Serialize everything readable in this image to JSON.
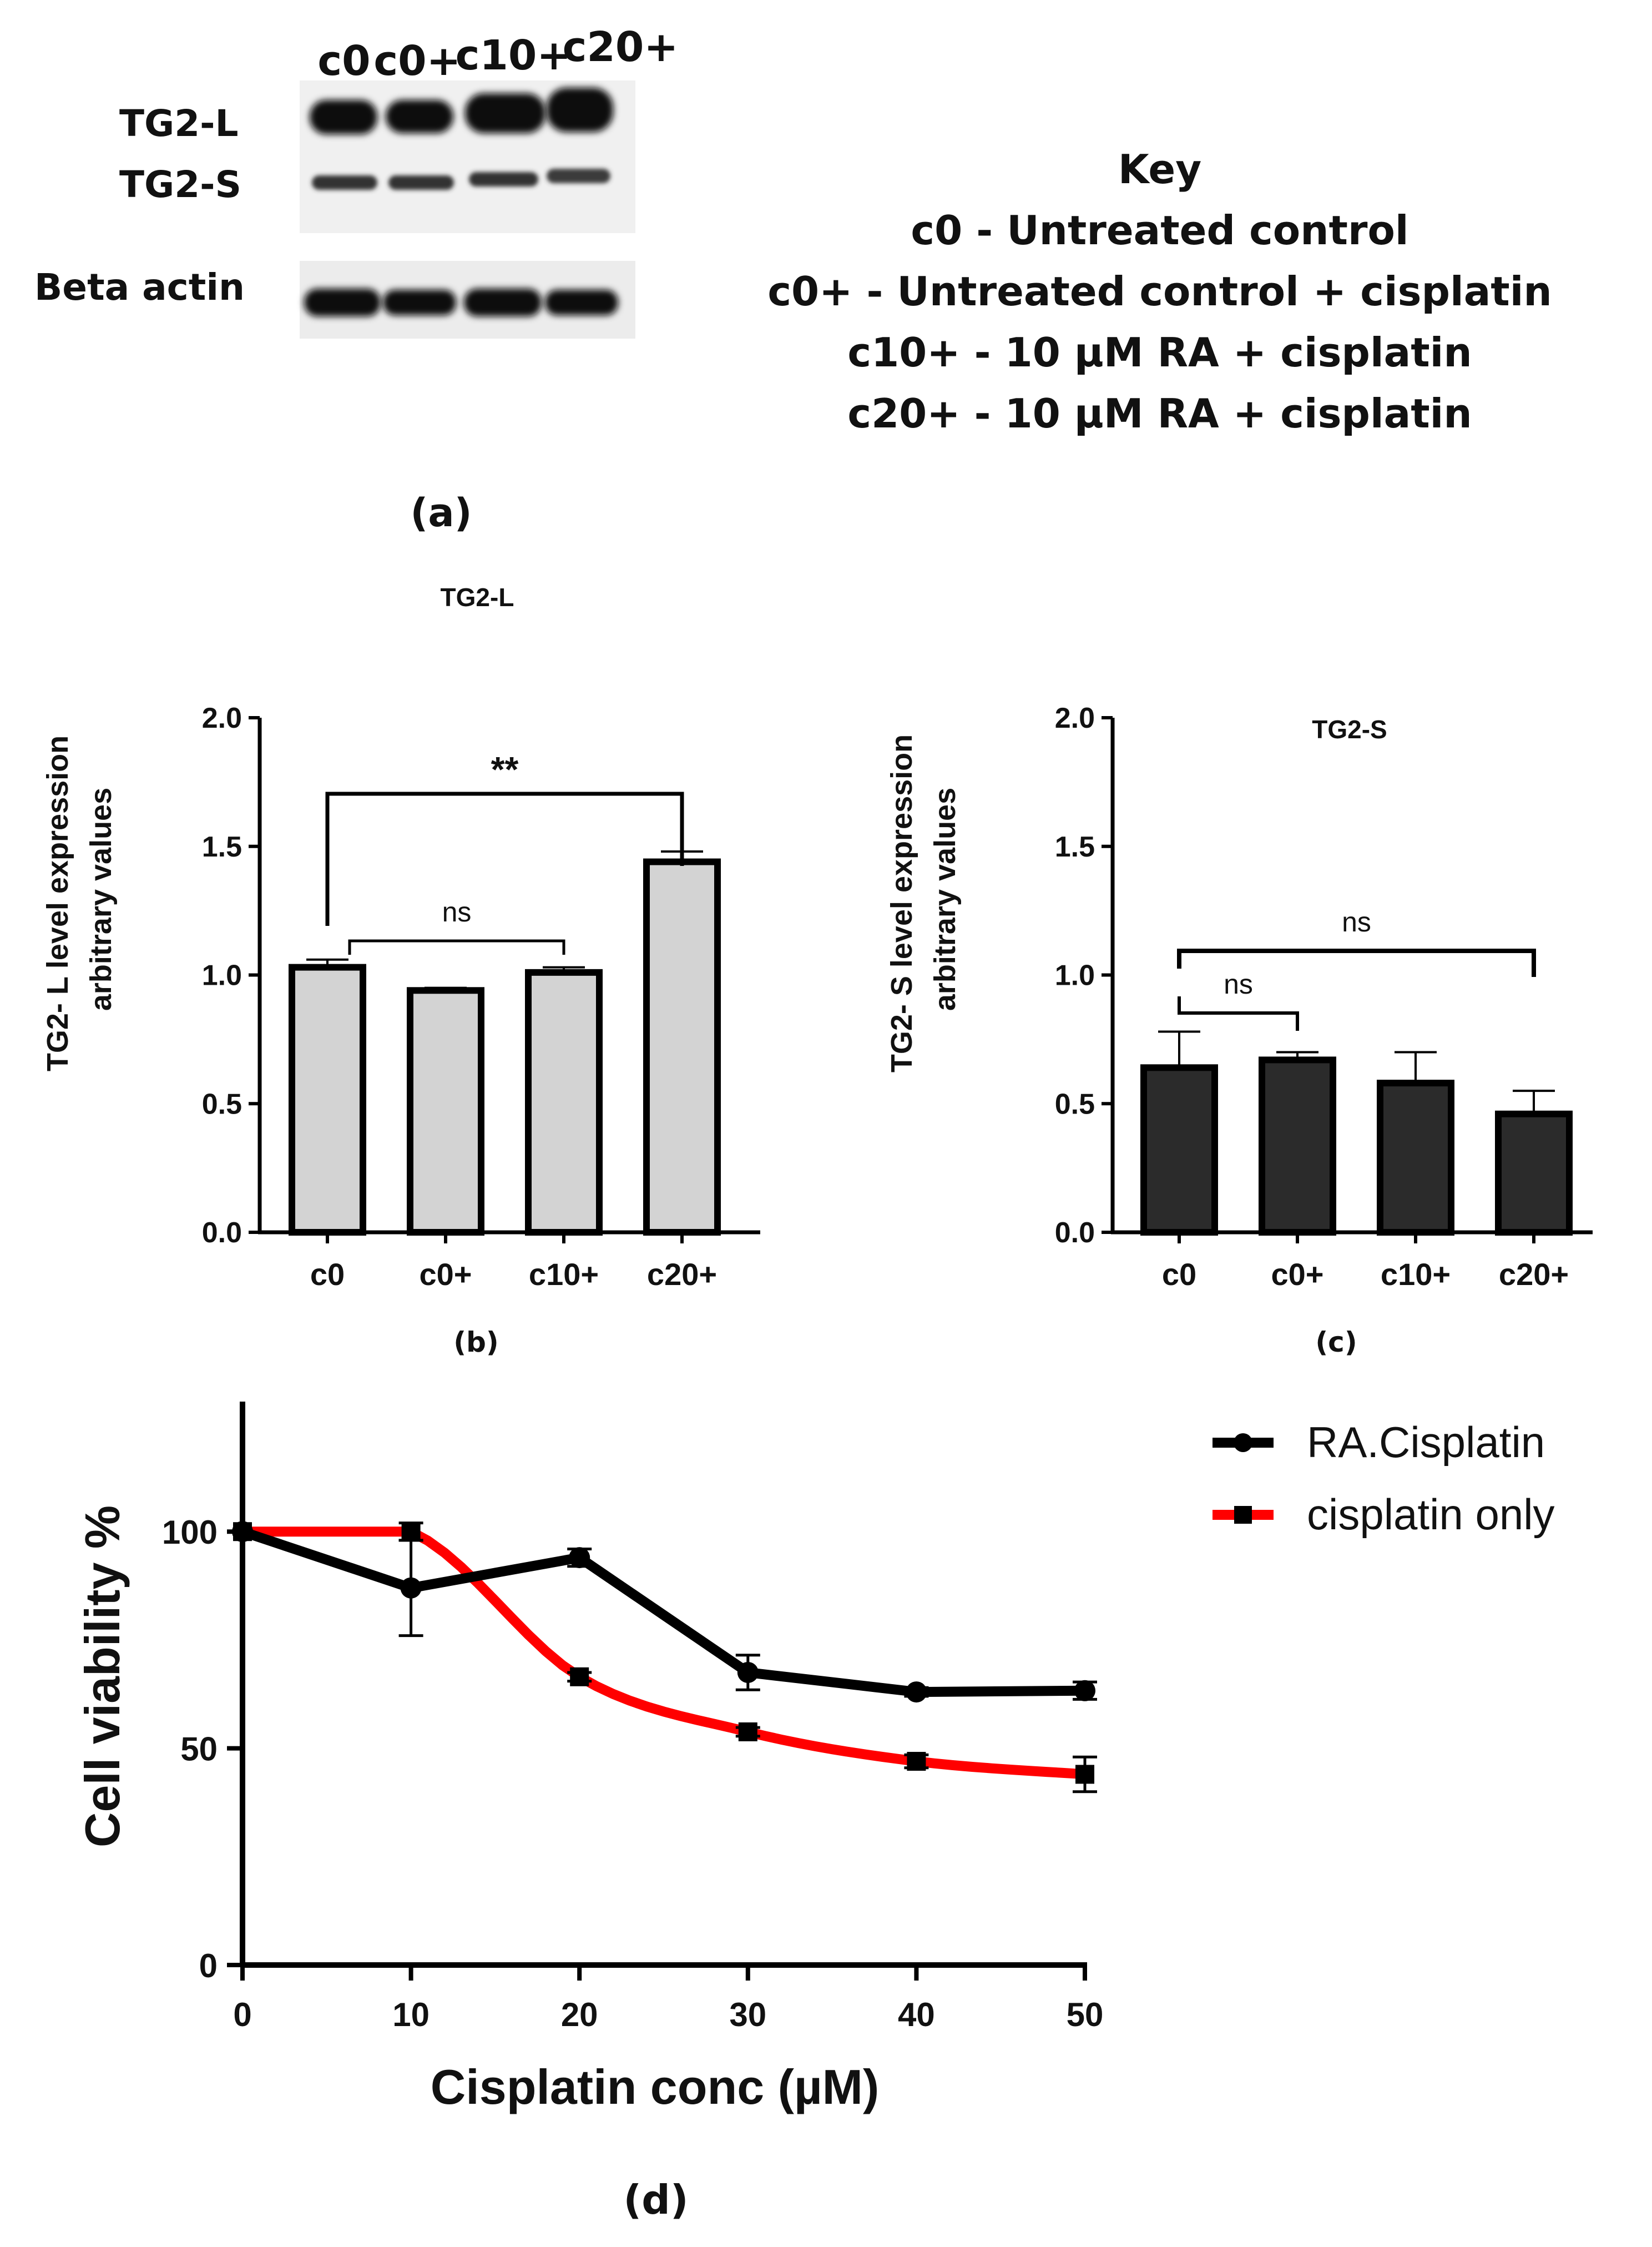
{
  "panel_a": {
    "lanes": [
      "c0",
      "c0+",
      "c10+",
      "c20+"
    ],
    "band_labels": [
      "TG2-L",
      "TG2-S",
      "Beta actin"
    ],
    "key_title": "Key",
    "key_items": [
      "c0 - Untreated control",
      "c0+ - Untreated control + cisplatin",
      "c10+ - 10 µM RA + cisplatin",
      "c20+ - 10 µM RA + cisplatin"
    ],
    "letter": "(a)"
  },
  "colors": {
    "bar_b": "#d3d3d3",
    "bar_c": "#2b2b2b",
    "ra_cisplatin": "#000000",
    "cisplatin_only": "#ff0000"
  },
  "chart_data": [
    {
      "type": "bar",
      "title": "TG2-L",
      "ylabel_lines": [
        "TG2- L level expression",
        "arbitrary values"
      ],
      "categories": [
        "c0",
        "c0+",
        "c10+",
        "c20+"
      ],
      "values": [
        1.03,
        0.94,
        1.01,
        1.44
      ],
      "errors": [
        0.03,
        0.01,
        0.02,
        0.04
      ],
      "ylim": [
        0,
        2.0
      ],
      "yticks": [
        "0.0",
        "0.5",
        "1.0",
        "1.5",
        "2.0"
      ],
      "brackets": [
        {
          "from": "c0",
          "to": "c20+",
          "label": "**"
        },
        {
          "from": "c0",
          "to": "c10+",
          "label": "ns"
        }
      ],
      "letter": "(b)"
    },
    {
      "type": "bar",
      "title": "TG2-S",
      "ylabel_lines": [
        "TG2- S level expression",
        "arbitrary values"
      ],
      "categories": [
        "c0",
        "c0+",
        "c10+",
        "c20+"
      ],
      "values": [
        0.64,
        0.67,
        0.58,
        0.46
      ],
      "errors": [
        0.14,
        0.03,
        0.12,
        0.09
      ],
      "ylim": [
        0,
        2.0
      ],
      "yticks": [
        "0.0",
        "0.5",
        "1.0",
        "1.5",
        "2.0"
      ],
      "brackets": [
        {
          "from": "c0",
          "to": "c20+",
          "label": "ns"
        },
        {
          "from": "c0",
          "to": "c0+",
          "label": "ns"
        }
      ],
      "letter": "(c)"
    },
    {
      "type": "line",
      "xlabel": "Cisplatin conc (µM)",
      "ylabel": "Cell viability %",
      "xlim": [
        0,
        50
      ],
      "ylim": [
        0,
        130
      ],
      "xticks": [
        "0",
        "10",
        "20",
        "30",
        "40",
        "50"
      ],
      "yticks": [
        "0",
        "50",
        "100"
      ],
      "legend_position": "top-right",
      "series": [
        {
          "name": "RA.Cisplatin",
          "marker": "circle",
          "x": [
            0,
            10,
            20,
            30,
            40,
            50
          ],
          "y": [
            100,
            87,
            94,
            67.5,
            63,
            63.3
          ],
          "err": [
            0,
            11,
            2,
            4,
            1,
            2
          ]
        },
        {
          "name": "cisplatin only",
          "marker": "square",
          "x": [
            0,
            10,
            20,
            30,
            40,
            50
          ],
          "y": [
            100,
            100,
            66.5,
            53.8,
            47,
            44
          ],
          "err": [
            0,
            2,
            1,
            1,
            1.5,
            4
          ]
        }
      ],
      "letter": "(d)"
    }
  ]
}
